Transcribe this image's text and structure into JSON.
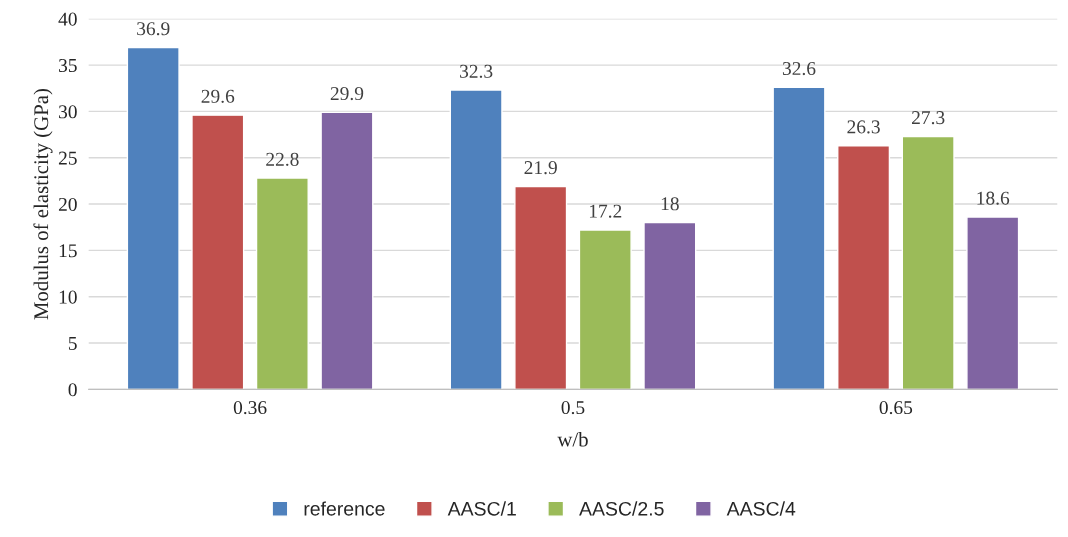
{
  "chart_data": {
    "type": "bar",
    "xlabel": "w/b",
    "ylabel": "Modulus of elasticity (GPa)",
    "categories": [
      "0.36",
      "0.5",
      "0.65"
    ],
    "series": [
      {
        "name": "reference",
        "color": "#4f81bd",
        "values": [
          36.9,
          32.3,
          32.6
        ]
      },
      {
        "name": "AASC/1",
        "color": "#c0504d",
        "values": [
          29.6,
          21.9,
          26.3
        ]
      },
      {
        "name": "AASC/2.5",
        "color": "#9bbb59",
        "values": [
          22.8,
          17.2,
          27.3
        ]
      },
      {
        "name": "AASC/4",
        "color": "#8064a2",
        "values": [
          29.9,
          18,
          18.6
        ]
      }
    ],
    "ylim": [
      0,
      40
    ],
    "yticks": [
      0,
      5,
      10,
      15,
      20,
      25,
      30,
      35,
      40
    ],
    "grid": "y",
    "legend": "bottom",
    "data_labels": true
  }
}
